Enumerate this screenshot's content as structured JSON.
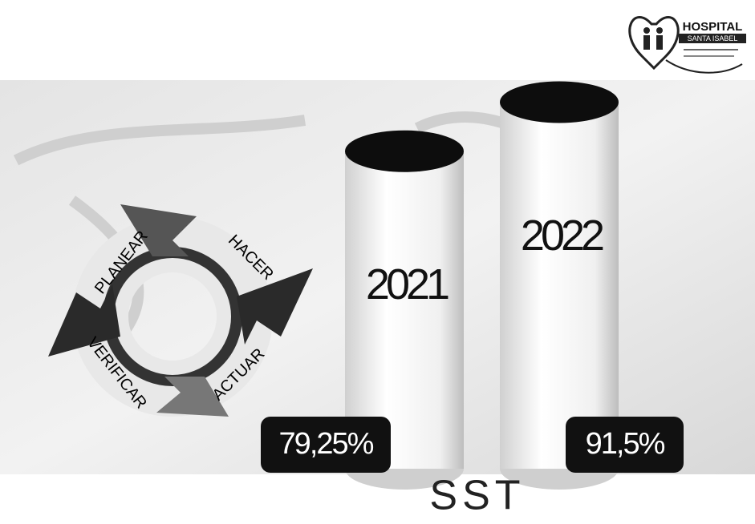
{
  "chart_data": {
    "type": "cylinder",
    "categories": [
      "2021",
      "2022"
    ],
    "values": [
      79.25,
      91.5
    ],
    "value_labels": [
      "79,25%",
      "91,5%"
    ],
    "x_label": "SST",
    "color": "#f2f2f2",
    "top_color": "#0d0d0d"
  },
  "cycle": {
    "steps": [
      "PLANEAR",
      "HACER",
      "ACTUAR",
      "VERIFICAR"
    ]
  },
  "logo": {
    "title": "HOSPITAL",
    "subtitle": "SANTA ISABEL"
  }
}
